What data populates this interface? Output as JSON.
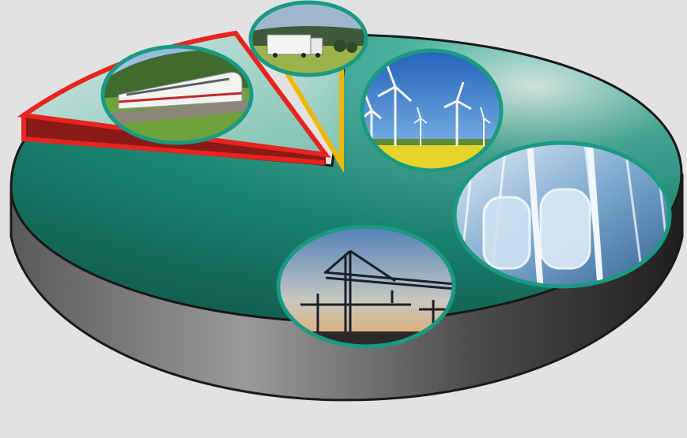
{
  "colors": {
    "background": "#e2e2e2",
    "pie_top": "#1e9c84",
    "pie_top_light": "#b7ddd4",
    "pie_side": "#2f2f2f",
    "slice_red": "#e8241f",
    "slice_yellow": "#f2b705",
    "medallion_ring": "#1a9a82"
  },
  "slices": [
    {
      "name": "rail",
      "outline": "red"
    },
    {
      "name": "road-freight",
      "outline": "yellow"
    },
    {
      "name": "remainder",
      "outline": "none"
    }
  ],
  "medallions": [
    {
      "name": "train",
      "icon": "high-speed-train-photo"
    },
    {
      "name": "truck",
      "icon": "truck-photo"
    },
    {
      "name": "wind-turbines",
      "icon": "wind-turbine-photo"
    },
    {
      "name": "elevators",
      "icon": "glass-elevator-photo"
    },
    {
      "name": "cranes",
      "icon": "construction-crane-photo"
    }
  ]
}
